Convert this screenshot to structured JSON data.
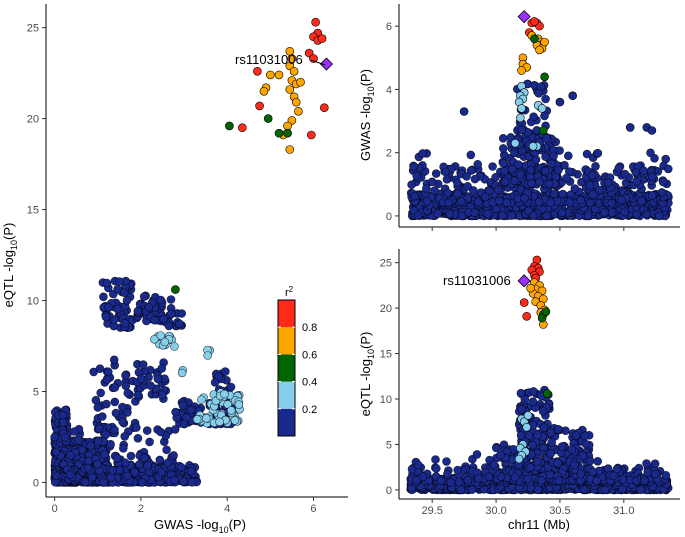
{
  "chart_data": [
    {
      "id": "scatter",
      "type": "scatter",
      "xlabel": "GWAS -log10(P)",
      "ylabel": "eQTL -log10(P)",
      "xlim": [
        -0.2,
        6.8
      ],
      "ylim": [
        -0.8,
        26.3
      ],
      "x_ticks": [
        0,
        2,
        4,
        6
      ],
      "y_ticks": [
        0,
        5,
        10,
        15,
        20,
        25
      ],
      "lead_snp": {
        "label": "rs11031006",
        "x": 6.3,
        "y": 23.0
      },
      "points": [
        {
          "x": 6.05,
          "y": 25.3,
          "r2": 0.9
        },
        {
          "x": 6.1,
          "y": 24.7,
          "r2": 0.9
        },
        {
          "x": 6.0,
          "y": 24.5,
          "r2": 0.9
        },
        {
          "x": 6.1,
          "y": 24.3,
          "r2": 0.9
        },
        {
          "x": 6.2,
          "y": 24.4,
          "r2": 0.9
        },
        {
          "x": 5.9,
          "y": 23.6,
          "r2": 0.9
        },
        {
          "x": 6.0,
          "y": 23.3,
          "r2": 0.9
        },
        {
          "x": 6.25,
          "y": 20.6,
          "r2": 0.9
        },
        {
          "x": 5.95,
          "y": 19.1,
          "r2": 0.9
        },
        {
          "x": 4.7,
          "y": 22.6,
          "r2": 0.9
        },
        {
          "x": 4.75,
          "y": 20.7,
          "r2": 0.9
        },
        {
          "x": 4.35,
          "y": 19.5,
          "r2": 0.9
        },
        {
          "x": 5.45,
          "y": 23.7,
          "r2": 0.7
        },
        {
          "x": 5.5,
          "y": 23.3,
          "r2": 0.7
        },
        {
          "x": 5.45,
          "y": 22.9,
          "r2": 0.7
        },
        {
          "x": 5.55,
          "y": 22.6,
          "r2": 0.7
        },
        {
          "x": 5.5,
          "y": 22.1,
          "r2": 0.7
        },
        {
          "x": 5.6,
          "y": 21.9,
          "r2": 0.7
        },
        {
          "x": 5.45,
          "y": 21.6,
          "r2": 0.7
        },
        {
          "x": 5.55,
          "y": 21.2,
          "r2": 0.7
        },
        {
          "x": 5.6,
          "y": 20.9,
          "r2": 0.7
        },
        {
          "x": 5.5,
          "y": 19.9,
          "r2": 0.7
        },
        {
          "x": 5.65,
          "y": 20.4,
          "r2": 0.7
        },
        {
          "x": 5.4,
          "y": 19.6,
          "r2": 0.7
        },
        {
          "x": 5.0,
          "y": 22.4,
          "r2": 0.7
        },
        {
          "x": 4.9,
          "y": 21.7,
          "r2": 0.7
        },
        {
          "x": 4.85,
          "y": 21.5,
          "r2": 0.7
        },
        {
          "x": 5.3,
          "y": 19.1,
          "r2": 0.7
        },
        {
          "x": 5.45,
          "y": 18.3,
          "r2": 0.7
        },
        {
          "x": 5.2,
          "y": 22.4,
          "r2": 0.7
        },
        {
          "x": 5.7,
          "y": 22.0,
          "r2": 0.7
        },
        {
          "x": 5.2,
          "y": 19.2,
          "r2": 0.5
        },
        {
          "x": 4.95,
          "y": 20.0,
          "r2": 0.5
        },
        {
          "x": 4.05,
          "y": 19.6,
          "r2": 0.5
        },
        {
          "x": 5.4,
          "y": 19.2,
          "r2": 0.5
        },
        {
          "x": 2.8,
          "y": 10.6,
          "r2": 0.5
        }
      ],
      "clusters": [
        {
          "x0": 0.0,
          "x1": 1.2,
          "y0": 0.0,
          "y1": 2.3,
          "n": 700,
          "r2": 0.05
        },
        {
          "x0": 0.0,
          "x1": 0.3,
          "y0": 0.0,
          "y1": 4.0,
          "n": 140,
          "r2": 0.05
        },
        {
          "x0": 0.2,
          "x1": 3.3,
          "y0": 0.0,
          "y1": 1.0,
          "n": 260,
          "r2": 0.05
        },
        {
          "x0": 1.1,
          "x1": 1.8,
          "y0": 8.5,
          "y1": 11.2,
          "n": 55,
          "r2": 0.05
        },
        {
          "x0": 1.9,
          "x1": 2.7,
          "y0": 8.8,
          "y1": 10.3,
          "n": 50,
          "r2": 0.05
        },
        {
          "x0": 2.6,
          "x1": 2.95,
          "y0": 8.6,
          "y1": 9.4,
          "n": 10,
          "r2": 0.05
        },
        {
          "x0": 0.9,
          "x1": 1.9,
          "y0": 3.0,
          "y1": 6.8,
          "n": 50,
          "r2": 0.05
        },
        {
          "x0": 1.9,
          "x1": 2.6,
          "y0": 4.6,
          "y1": 6.8,
          "n": 30,
          "r2": 0.05
        },
        {
          "x0": 2.8,
          "x1": 4.1,
          "y0": 3.2,
          "y1": 4.5,
          "n": 70,
          "r2": 0.05
        },
        {
          "x0": 3.7,
          "x1": 4.1,
          "y0": 4.7,
          "y1": 6.1,
          "n": 14,
          "r2": 0.05
        },
        {
          "x0": 0.2,
          "x1": 2.8,
          "y0": 0.0,
          "y1": 3.0,
          "n": 160,
          "r2": 0.05
        },
        {
          "x0": 3.3,
          "x1": 4.3,
          "y0": 3.2,
          "y1": 5.0,
          "n": 55,
          "r2": 0.3
        },
        {
          "x0": 2.3,
          "x1": 2.85,
          "y0": 7.4,
          "y1": 8.1,
          "n": 14,
          "r2": 0.3
        },
        {
          "x0": 3.3,
          "x1": 3.6,
          "y0": 6.9,
          "y1": 7.3,
          "n": 3,
          "r2": 0.3
        },
        {
          "x0": 2.9,
          "x1": 3.05,
          "y0": 6.0,
          "y1": 6.2,
          "n": 2,
          "r2": 0.3
        }
      ]
    },
    {
      "id": "gwas_locus",
      "type": "scatter",
      "xlabel": "",
      "ylabel": "GWAS -log10(P)",
      "xlim": [
        29.24,
        31.44
      ],
      "ylim": [
        -0.35,
        6.7
      ],
      "x_ticks": [
        29.5,
        30.0,
        30.5,
        31.0
      ],
      "y_ticks": [
        0,
        2,
        4,
        6
      ],
      "lead_snp": {
        "x": 30.22,
        "y": 6.3
      },
      "points": [
        {
          "x": 30.28,
          "y": 6.1,
          "r2": 0.9
        },
        {
          "x": 30.32,
          "y": 6.1,
          "r2": 0.9
        },
        {
          "x": 30.34,
          "y": 6.0,
          "r2": 0.9
        },
        {
          "x": 30.3,
          "y": 6.15,
          "r2": 0.9
        },
        {
          "x": 30.26,
          "y": 5.8,
          "r2": 0.9
        },
        {
          "x": 30.33,
          "y": 5.6,
          "r2": 0.7
        },
        {
          "x": 30.35,
          "y": 5.5,
          "r2": 0.7
        },
        {
          "x": 30.37,
          "y": 5.45,
          "r2": 0.7
        },
        {
          "x": 30.32,
          "y": 5.4,
          "r2": 0.7
        },
        {
          "x": 30.36,
          "y": 5.3,
          "r2": 0.7
        },
        {
          "x": 30.34,
          "y": 5.25,
          "r2": 0.7
        },
        {
          "x": 30.38,
          "y": 5.5,
          "r2": 0.7
        },
        {
          "x": 30.28,
          "y": 5.7,
          "r2": 0.7
        },
        {
          "x": 30.21,
          "y": 5.0,
          "r2": 0.7
        },
        {
          "x": 30.21,
          "y": 4.8,
          "r2": 0.7
        },
        {
          "x": 30.24,
          "y": 4.7,
          "r2": 0.7
        },
        {
          "x": 30.2,
          "y": 4.6,
          "r2": 0.7
        },
        {
          "x": 30.3,
          "y": 5.6,
          "r2": 0.5
        },
        {
          "x": 30.38,
          "y": 4.4,
          "r2": 0.5
        },
        {
          "x": 30.37,
          "y": 2.7,
          "r2": 0.5
        },
        {
          "x": 30.2,
          "y": 4.1,
          "r2": 0.3
        },
        {
          "x": 30.22,
          "y": 3.9,
          "r2": 0.3
        },
        {
          "x": 30.19,
          "y": 3.8,
          "r2": 0.3
        },
        {
          "x": 30.21,
          "y": 3.7,
          "r2": 0.3
        },
        {
          "x": 30.18,
          "y": 3.6,
          "r2": 0.3
        },
        {
          "x": 30.2,
          "y": 3.4,
          "r2": 0.3
        },
        {
          "x": 30.33,
          "y": 3.5,
          "r2": 0.3
        },
        {
          "x": 30.36,
          "y": 3.4,
          "r2": 0.3
        },
        {
          "x": 30.32,
          "y": 2.2,
          "r2": 0.3
        },
        {
          "x": 30.15,
          "y": 2.3,
          "r2": 0.3
        },
        {
          "x": 30.29,
          "y": 2.2,
          "r2": 0.3
        },
        {
          "x": 30.19,
          "y": 3.1,
          "r2": 0.3
        },
        {
          "x": 31.18,
          "y": 2.8,
          "r2": 0.05
        },
        {
          "x": 31.22,
          "y": 2.7,
          "r2": 0.05
        },
        {
          "x": 31.05,
          "y": 2.8,
          "r2": 0.05
        },
        {
          "x": 30.6,
          "y": 3.8,
          "r2": 0.05
        },
        {
          "x": 30.5,
          "y": 3.6,
          "r2": 0.05
        },
        {
          "x": 29.75,
          "y": 3.3,
          "r2": 0.05
        }
      ],
      "clusters": [
        {
          "x0": 29.33,
          "x1": 31.35,
          "y0": 0.0,
          "y1": 0.7,
          "n": 900,
          "r2": 0.05
        },
        {
          "x0": 29.33,
          "x1": 31.35,
          "y0": 0.4,
          "y1": 1.6,
          "n": 280,
          "r2": 0.05
        },
        {
          "x0": 29.33,
          "x1": 31.35,
          "y0": 1.2,
          "y1": 2.0,
          "n": 40,
          "r2": 0.05
        },
        {
          "x0": 30.05,
          "x1": 30.5,
          "y0": 1.0,
          "y1": 2.5,
          "n": 120,
          "r2": 0.05
        },
        {
          "x0": 30.16,
          "x1": 30.4,
          "y0": 2.0,
          "y1": 4.2,
          "n": 60,
          "r2": 0.05
        }
      ]
    },
    {
      "id": "eqtl_locus",
      "type": "scatter",
      "xlabel": "chr11 (Mb)",
      "ylabel": "eQTL -log10(P)",
      "xlim": [
        29.24,
        31.44
      ],
      "ylim": [
        -1.0,
        26.5
      ],
      "x_ticks": [
        29.5,
        30.0,
        30.5,
        31.0
      ],
      "x_tick_labels": [
        "29.5",
        "30.0",
        "30.5",
        "31.0"
      ],
      "y_ticks": [
        0,
        5,
        10,
        15,
        20,
        25
      ],
      "lead_snp": {
        "label": "rs11031006",
        "x": 30.22,
        "y": 23.0
      },
      "points": [
        {
          "x": 30.32,
          "y": 25.3,
          "r2": 0.9
        },
        {
          "x": 30.3,
          "y": 24.6,
          "r2": 0.9
        },
        {
          "x": 30.33,
          "y": 24.4,
          "r2": 0.9
        },
        {
          "x": 30.28,
          "y": 24.2,
          "r2": 0.9
        },
        {
          "x": 30.34,
          "y": 24.0,
          "r2": 0.9
        },
        {
          "x": 30.3,
          "y": 23.6,
          "r2": 0.9
        },
        {
          "x": 30.31,
          "y": 23.3,
          "r2": 0.9
        },
        {
          "x": 30.22,
          "y": 20.6,
          "r2": 0.9
        },
        {
          "x": 30.24,
          "y": 19.1,
          "r2": 0.9
        },
        {
          "x": 30.3,
          "y": 22.8,
          "r2": 0.7
        },
        {
          "x": 30.34,
          "y": 22.5,
          "r2": 0.7
        },
        {
          "x": 30.31,
          "y": 22.1,
          "r2": 0.7
        },
        {
          "x": 30.36,
          "y": 21.9,
          "r2": 0.7
        },
        {
          "x": 30.29,
          "y": 21.6,
          "r2": 0.7
        },
        {
          "x": 30.33,
          "y": 21.3,
          "r2": 0.7
        },
        {
          "x": 30.37,
          "y": 21.0,
          "r2": 0.7
        },
        {
          "x": 30.31,
          "y": 20.7,
          "r2": 0.7
        },
        {
          "x": 30.35,
          "y": 20.3,
          "r2": 0.7
        },
        {
          "x": 30.38,
          "y": 19.8,
          "r2": 0.7
        },
        {
          "x": 30.27,
          "y": 22.2,
          "r2": 0.7
        },
        {
          "x": 30.37,
          "y": 18.2,
          "r2": 0.7
        },
        {
          "x": 30.35,
          "y": 19.5,
          "r2": 0.7
        },
        {
          "x": 30.37,
          "y": 19.3,
          "r2": 0.5
        },
        {
          "x": 30.36,
          "y": 18.9,
          "r2": 0.5
        },
        {
          "x": 30.39,
          "y": 19.6,
          "r2": 0.5
        },
        {
          "x": 30.4,
          "y": 10.6,
          "r2": 0.5
        },
        {
          "x": 30.2,
          "y": 7.8,
          "r2": 0.3
        },
        {
          "x": 30.22,
          "y": 7.5,
          "r2": 0.3
        },
        {
          "x": 30.24,
          "y": 6.9,
          "r2": 0.3
        },
        {
          "x": 30.21,
          "y": 5.0,
          "r2": 0.3
        },
        {
          "x": 30.19,
          "y": 4.6,
          "r2": 0.3
        },
        {
          "x": 30.23,
          "y": 4.2,
          "r2": 0.3
        },
        {
          "x": 30.2,
          "y": 3.8,
          "r2": 0.3
        },
        {
          "x": 30.25,
          "y": 8.2,
          "r2": 0.3
        },
        {
          "x": 30.18,
          "y": 3.4,
          "r2": 0.3
        }
      ],
      "clusters": [
        {
          "x0": 29.33,
          "x1": 31.35,
          "y0": 0.0,
          "y1": 1.2,
          "n": 900,
          "r2": 0.05
        },
        {
          "x0": 29.33,
          "x1": 31.35,
          "y0": 0.8,
          "y1": 2.6,
          "n": 150,
          "r2": 0.05
        },
        {
          "x0": 30.18,
          "x1": 30.42,
          "y0": 2.0,
          "y1": 11.0,
          "n": 160,
          "r2": 0.05
        },
        {
          "x0": 30.42,
          "x1": 30.75,
          "y0": 1.0,
          "y1": 7.0,
          "n": 120,
          "r2": 0.05
        },
        {
          "x0": 30.0,
          "x1": 30.2,
          "y0": 1.0,
          "y1": 5.0,
          "n": 60,
          "r2": 0.05
        },
        {
          "x0": 29.33,
          "x1": 30.1,
          "y0": 1.0,
          "y1": 4.0,
          "n": 30,
          "r2": 0.05
        },
        {
          "x0": 30.7,
          "x1": 31.35,
          "y0": 1.0,
          "y1": 3.2,
          "n": 30,
          "r2": 0.05
        }
      ]
    }
  ],
  "legend": {
    "title": "r2",
    "title_base": "r",
    "title_sup": "2",
    "labels": [
      "0.8",
      "0.6",
      "0.4",
      "0.2"
    ],
    "colors": [
      "#1a2a8c",
      "#87ceeb",
      "#006400",
      "#ffa500",
      "#ff2a1a"
    ],
    "lead_color": "#9b30ff"
  },
  "labels": {
    "scatter_x_main": "GWAS -log",
    "scatter_y_main": "eQTL -log",
    "gwas_y_main": "GWAS -log",
    "eqtl_y_main": "eQTL -log",
    "log_sub": "10",
    "paren": "(P)",
    "chr_axis": "chr11 (Mb)",
    "lead_annot": "rs11031006"
  }
}
